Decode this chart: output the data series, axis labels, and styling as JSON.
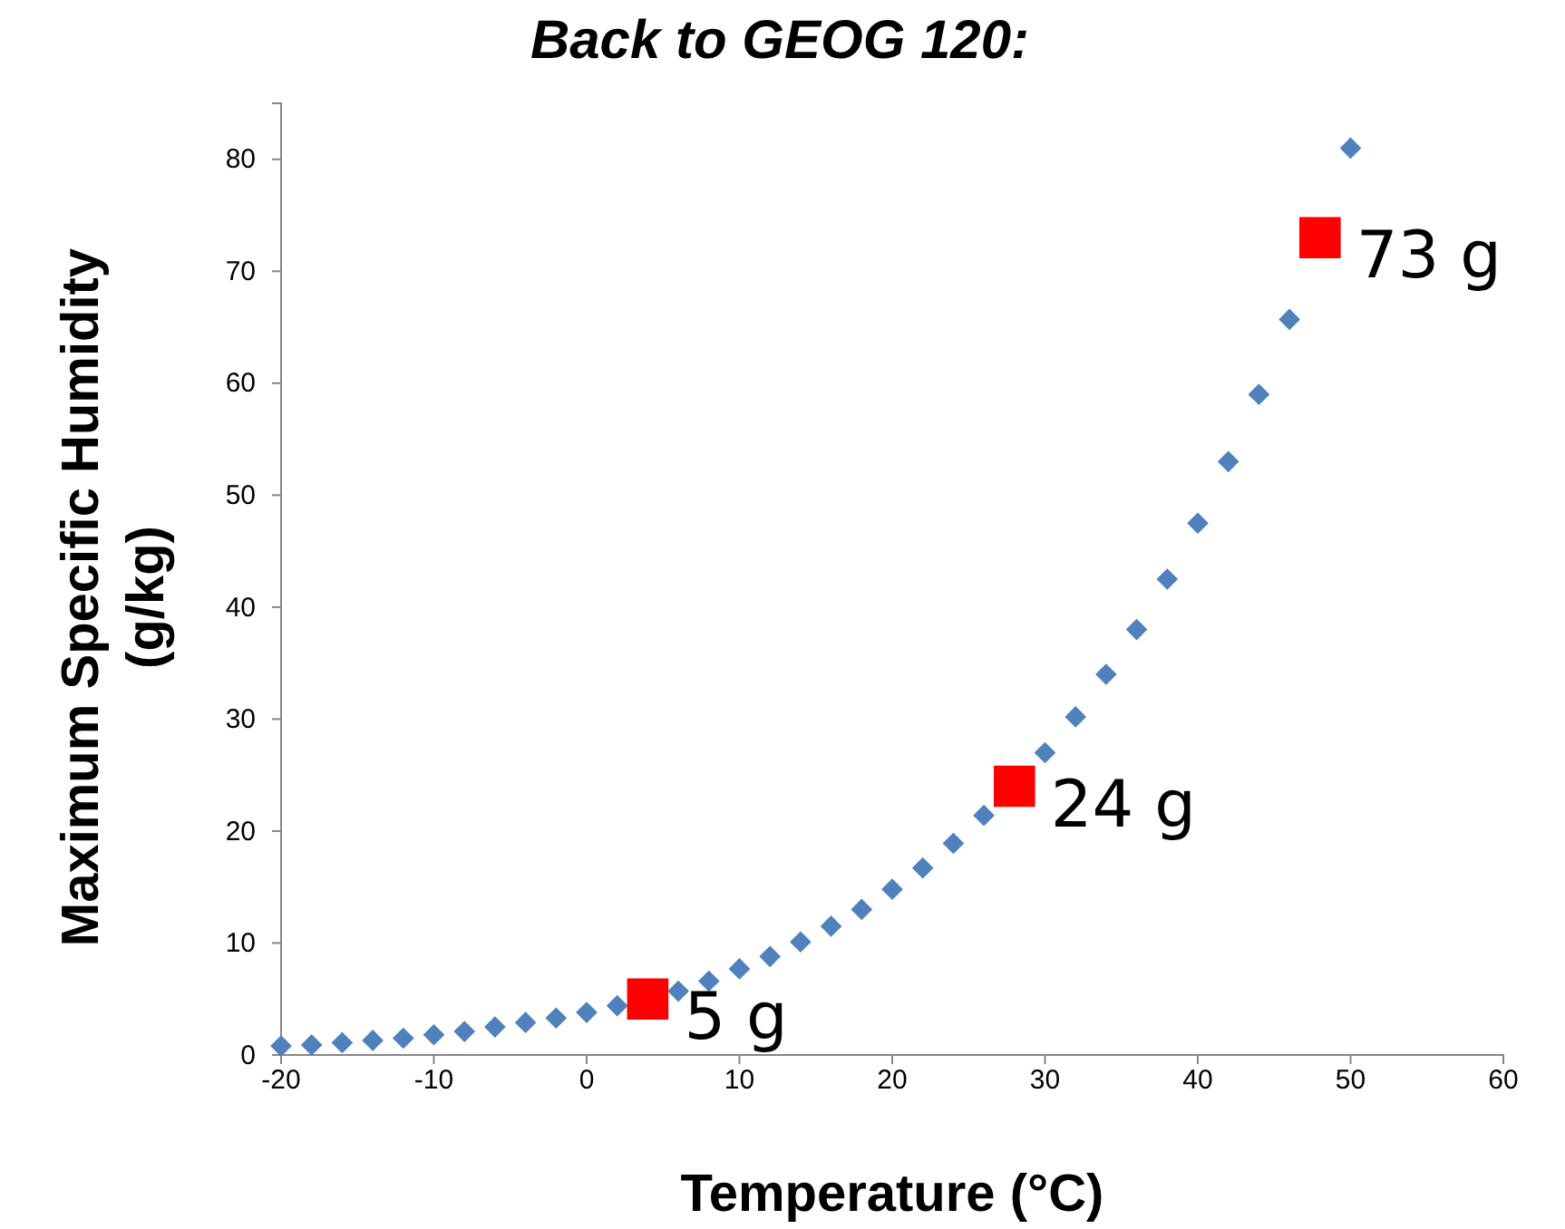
{
  "chart_data": {
    "type": "scatter",
    "title": "Back to GEOG 120:",
    "xlabel": "Temperature (°C)",
    "ylabel": "Maximum Specific Humidity (g/kg)",
    "xlim": [
      -20,
      60
    ],
    "xticks": [
      -20,
      -10,
      0,
      10,
      20,
      30,
      40,
      50,
      60
    ],
    "ylim": [
      0,
      85
    ],
    "yticks": [
      0,
      10,
      20,
      30,
      40,
      50,
      60,
      70,
      80
    ],
    "grid": false,
    "series": [
      {
        "color": "#4f81bd",
        "marker": "diamond",
        "x": [
          -20,
          -18,
          -16,
          -14,
          -12,
          -10,
          -8,
          -6,
          -4,
          -2,
          0,
          2,
          4,
          6,
          8,
          10,
          12,
          14,
          16,
          18,
          20,
          22,
          24,
          26,
          28,
          30,
          32,
          34,
          36,
          38,
          40,
          42,
          44,
          46,
          48,
          50
        ],
        "values": [
          0.8,
          0.9,
          1.1,
          1.3,
          1.5,
          1.8,
          2.1,
          2.5,
          2.9,
          3.3,
          3.8,
          4.4,
          null,
          5.7,
          6.6,
          7.7,
          8.8,
          10.1,
          11.5,
          13,
          14.8,
          16.7,
          18.9,
          21.4,
          null,
          27,
          30.2,
          34,
          38,
          42.5,
          47.5,
          53,
          59,
          65.7,
          null,
          81
        ]
      },
      {
        "color": "#ff0000",
        "marker": "square",
        "x": [
          4,
          28,
          48
        ],
        "values": [
          5,
          24,
          73
        ],
        "value_labels": [
          "5 g",
          "24 g",
          "73 g"
        ]
      }
    ]
  }
}
